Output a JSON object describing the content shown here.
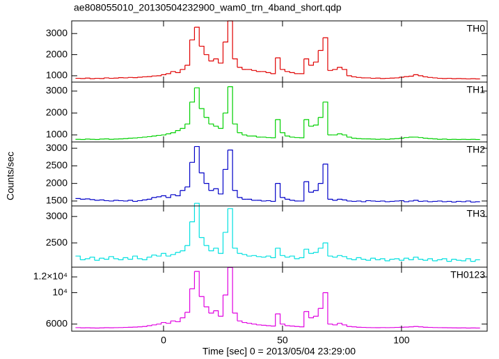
{
  "chart_data": {
    "type": "line",
    "step": true,
    "title": "ae808055010_20130504232900_wam0_trn_4band_short.qdp",
    "xlabel": "Time [sec] 0 = 2013/05/04 23:29:00",
    "ylabel": "Counts/sec",
    "xlim": [
      -38.6,
      136
    ],
    "xticks": [
      0,
      50,
      100
    ],
    "x": [
      -36,
      -34,
      -32,
      -30,
      -28,
      -26,
      -24,
      -22,
      -20,
      -18,
      -16,
      -14,
      -12,
      -10,
      -8,
      -6,
      -4,
      -2,
      0,
      2,
      4,
      6,
      8,
      10,
      12,
      14,
      16,
      18,
      20,
      22,
      24,
      26,
      28,
      30,
      32,
      34,
      36,
      38,
      40,
      42,
      44,
      46,
      48,
      50,
      52,
      54,
      56,
      58,
      60,
      62,
      64,
      66,
      68,
      70,
      72,
      74,
      76,
      78,
      80,
      82,
      84,
      86,
      88,
      90,
      92,
      94,
      96,
      98,
      100,
      102,
      104,
      106,
      108,
      110,
      112,
      114,
      116,
      118,
      120,
      122,
      124,
      126,
      128,
      130,
      132
    ],
    "series": [
      {
        "name": "TH0",
        "color": "#e00000",
        "ylim": [
          700,
          3600
        ],
        "yticks": [
          1000,
          2000,
          3000
        ],
        "values": [
          880,
          870,
          890,
          860,
          880,
          870,
          900,
          880,
          890,
          910,
          900,
          920,
          910,
          930,
          950,
          960,
          990,
          1000,
          1050,
          1100,
          1200,
          1150,
          1300,
          1500,
          2700,
          3300,
          2400,
          2000,
          1700,
          1800,
          1600,
          2600,
          3600,
          1800,
          1400,
          1300,
          1300,
          1250,
          1200,
          1200,
          1150,
          1100,
          1850,
          1300,
          1200,
          1150,
          1100,
          1100,
          1800,
          1500,
          1650,
          2200,
          2800,
          1250,
          1300,
          1400,
          1300,
          1000,
          950,
          920,
          900,
          900,
          880,
          890,
          870,
          880,
          890,
          900,
          930,
          960,
          980,
          1050,
          1000,
          950,
          920,
          900,
          880,
          870,
          880,
          860,
          870,
          860,
          850,
          860,
          850
        ]
      },
      {
        "name": "TH1",
        "color": "#00d000",
        "ylim": [
          680,
          3410
        ],
        "yticks": [
          1000,
          2000,
          3000
        ],
        "values": [
          800,
          790,
          810,
          800,
          790,
          810,
          820,
          800,
          810,
          820,
          830,
          850,
          860,
          880,
          900,
          920,
          950,
          980,
          1000,
          1050,
          1100,
          1200,
          1300,
          1500,
          2500,
          3150,
          2200,
          1800,
          1500,
          1400,
          1300,
          2000,
          3200,
          1500,
          1100,
          1000,
          950,
          950,
          900,
          900,
          880,
          870,
          1700,
          1100,
          950,
          900,
          880,
          870,
          1700,
          1400,
          1450,
          1800,
          2500,
          1000,
          1000,
          1050,
          1000,
          900,
          850,
          830,
          820,
          820,
          810,
          800,
          810,
          800,
          820,
          830,
          850,
          880,
          900,
          900,
          880,
          850,
          830,
          820,
          800,
          810,
          790,
          800,
          790,
          800,
          790,
          800,
          790
        ]
      },
      {
        "name": "TH2",
        "color": "#0000c8",
        "ylim": [
          1360,
          3180
        ],
        "yticks": [
          1500,
          2000,
          2500,
          3000
        ],
        "values": [
          1570,
          1550,
          1560,
          1540,
          1520,
          1530,
          1510,
          1500,
          1520,
          1510,
          1500,
          1520,
          1490,
          1510,
          1530,
          1550,
          1600,
          1620,
          1650,
          1600,
          1680,
          1650,
          1800,
          1900,
          2600,
          3050,
          2300,
          2000,
          1800,
          1850,
          1700,
          2400,
          2950,
          1800,
          1600,
          1550,
          1550,
          1520,
          1520,
          1500,
          1510,
          1490,
          2000,
          1600,
          1550,
          1520,
          1500,
          1500,
          2050,
          1750,
          1800,
          2000,
          2550,
          1550,
          1520,
          1550,
          1530,
          1500,
          1490,
          1500,
          1480,
          1510,
          1500,
          1490,
          1500,
          1480,
          1490,
          1500,
          1510,
          1480,
          1500,
          1520,
          1490,
          1500,
          1480,
          1490,
          1500,
          1480,
          1490,
          1470,
          1490,
          1480,
          1500,
          1470,
          1480
        ]
      },
      {
        "name": "TH3",
        "color": "#00e0e0",
        "ylim": [
          2040,
          3200
        ],
        "yticks": [
          2500,
          3000
        ],
        "values": [
          2250,
          2180,
          2200,
          2230,
          2170,
          2210,
          2190,
          2240,
          2200,
          2180,
          2220,
          2190,
          2250,
          2200,
          2180,
          2230,
          2270,
          2250,
          2300,
          2250,
          2280,
          2320,
          2350,
          2450,
          2900,
          3250,
          2600,
          2450,
          2350,
          2400,
          2300,
          2700,
          3150,
          2400,
          2300,
          2280,
          2250,
          2260,
          2240,
          2230,
          2250,
          2220,
          2400,
          2260,
          2230,
          2250,
          2200,
          2220,
          2380,
          2300,
          2320,
          2400,
          2500,
          2250,
          2230,
          2260,
          2240,
          2200,
          2180,
          2220,
          2190,
          2170,
          2210,
          2180,
          2200,
          2160,
          2190,
          2200,
          2170,
          2210,
          2180,
          2230,
          2190,
          2170,
          2200,
          2160,
          2180,
          2200,
          2150,
          2190,
          2170,
          2160,
          2200,
          2150,
          2180
        ]
      },
      {
        "name": "TH0123",
        "color": "#e000e0",
        "ylim": [
          5100,
          13240
        ],
        "yticks": [
          6000,
          {
            "value": 10000,
            "label": "10⁴"
          },
          {
            "value": 12000,
            "label": "1.2×10⁴"
          }
        ],
        "values": [
          5550,
          5520,
          5530,
          5510,
          5500,
          5520,
          5540,
          5530,
          5550,
          5560,
          5580,
          5600,
          5620,
          5650,
          5700,
          5800,
          5900,
          6000,
          6200,
          6100,
          6400,
          6300,
          6800,
          7500,
          10500,
          12700,
          9500,
          8200,
          7400,
          7700,
          7000,
          9700,
          13200,
          7400,
          6400,
          6200,
          6100,
          6000,
          5900,
          5850,
          5800,
          5750,
          7300,
          6000,
          5800,
          5750,
          5700,
          5650,
          7600,
          6800,
          7000,
          8000,
          10000,
          6000,
          5900,
          6100,
          5900,
          5700,
          5650,
          5600,
          5580,
          5560,
          5550,
          5540,
          5560,
          5550,
          5560,
          5580,
          5600,
          5620,
          5650,
          5700,
          5650,
          5600,
          5580,
          5560,
          5550,
          5540,
          5530,
          5520,
          5510,
          5520,
          5500,
          5510,
          5500
        ]
      }
    ]
  }
}
